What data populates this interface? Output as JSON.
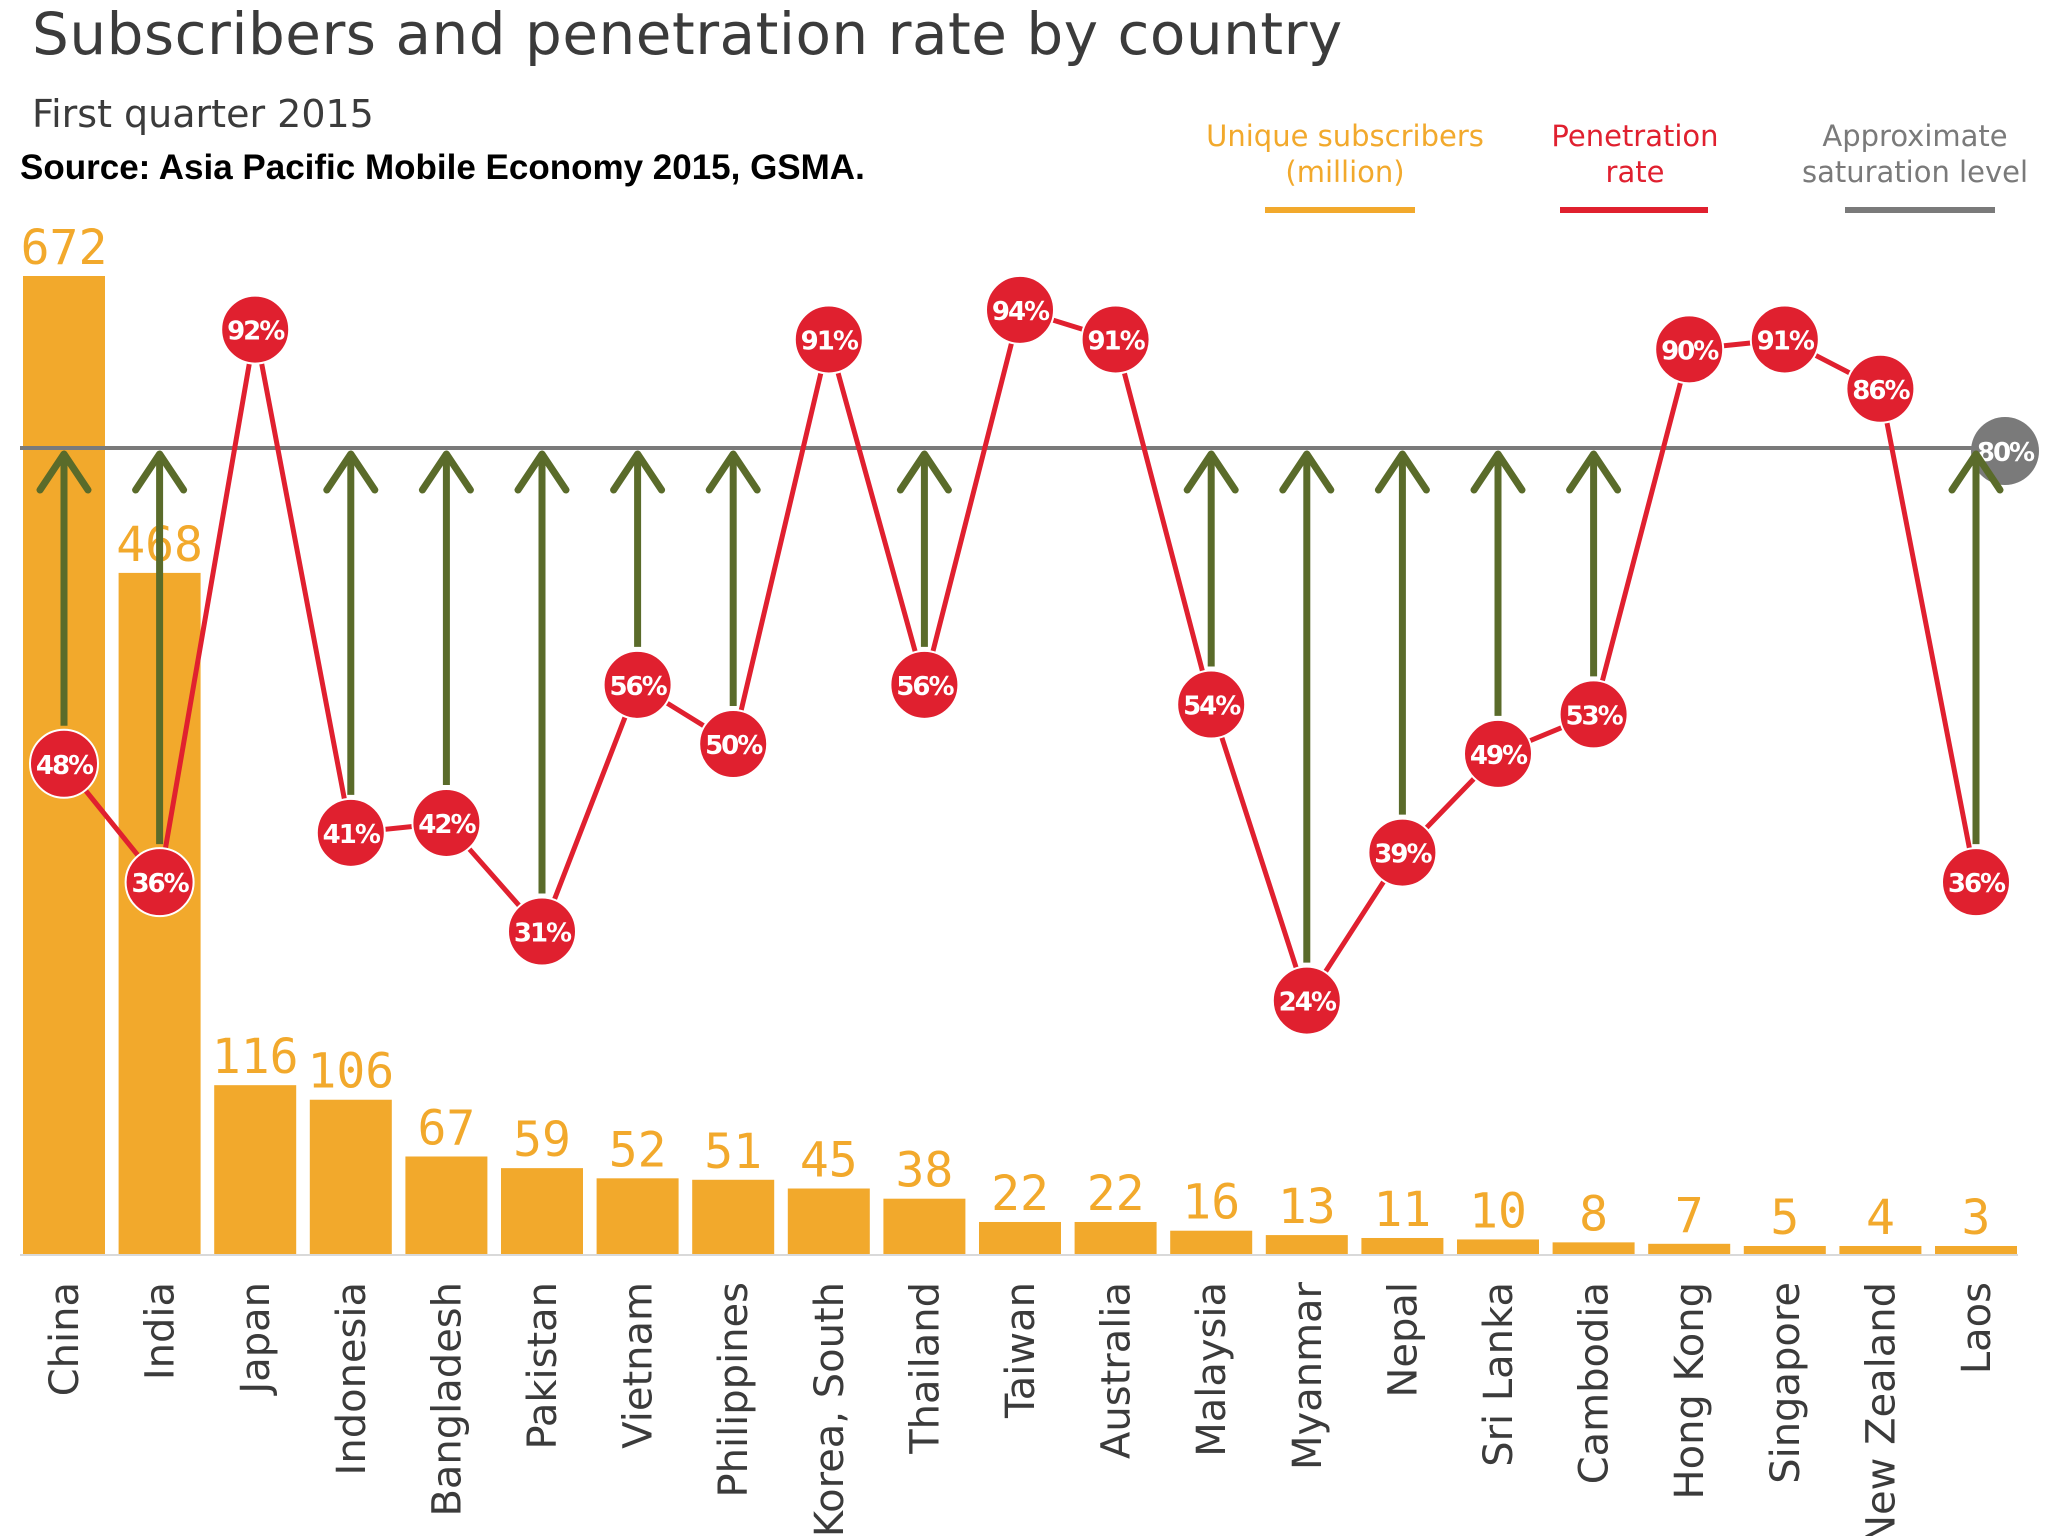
{
  "header": {
    "title": "Subscribers and penetration rate by country",
    "subtitle": "First quarter 2015",
    "source": "Source: Asia Pacific Mobile Economy 2015, GSMA."
  },
  "legend": [
    {
      "label": "Unique subscribers\n(million)",
      "color": "#f2a92c"
    },
    {
      "label": "Penetration\nrate",
      "color": "#e0202f"
    },
    {
      "label": "Approximate\nsaturation level",
      "color": "#7a7a7a"
    }
  ],
  "colors": {
    "bar": "#f2a92c",
    "line": "#e0202f",
    "saturation": "#7a7a7a",
    "arrow": "#5a6b2a"
  },
  "chart_data": {
    "type": "bar",
    "categories": [
      "China",
      "India",
      "Japan",
      "Indonesia",
      "Bangladesh",
      "Pakistan",
      "Vietnam",
      "Philippines",
      "Korea, South",
      "Thailand",
      "Taiwan",
      "Australia",
      "Malaysia",
      "Myanmar",
      "Nepal",
      "Sri Lanka",
      "Cambodia",
      "Hong Kong",
      "Singapore",
      "New Zealand",
      "Laos"
    ],
    "series": [
      {
        "name": "Unique subscribers (million)",
        "type": "bar",
        "values": [
          672,
          468,
          116,
          106,
          67,
          59,
          52,
          51,
          45,
          38,
          22,
          22,
          16,
          13,
          11,
          10,
          8,
          7,
          5,
          4,
          3
        ]
      },
      {
        "name": "Penetration rate",
        "type": "line",
        "unit": "%",
        "values": [
          48,
          36,
          92,
          41,
          42,
          31,
          56,
          50,
          91,
          56,
          94,
          91,
          54,
          24,
          39,
          49,
          53,
          90,
          91,
          86,
          36
        ]
      }
    ],
    "reference_line": {
      "name": "Approximate saturation level",
      "value": 80,
      "label": "80%"
    },
    "annotations": {
      "arrows_to_saturation_for": [
        "China",
        "India",
        "Indonesia",
        "Bangladesh",
        "Pakistan",
        "Vietnam",
        "Philippines",
        "Thailand",
        "Malaysia",
        "Myanmar",
        "Nepal",
        "Sri Lanka",
        "Cambodia",
        "Laos"
      ]
    },
    "grid": false,
    "legend_position": "top-right"
  }
}
